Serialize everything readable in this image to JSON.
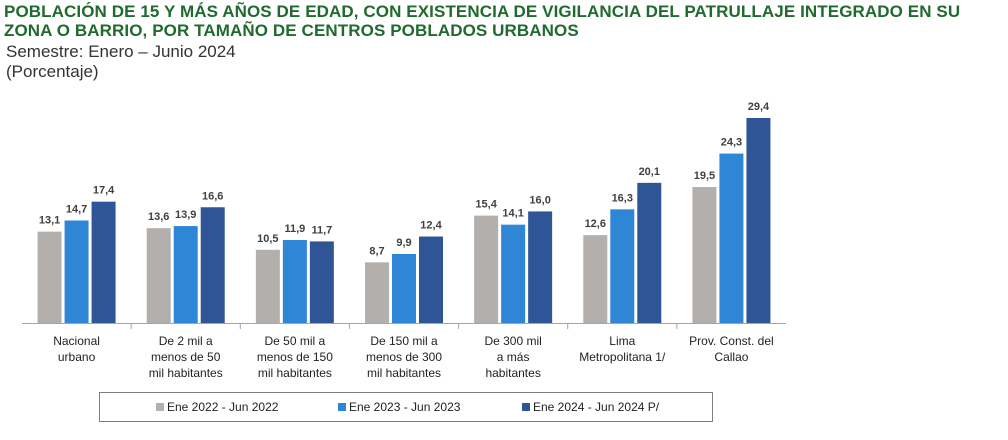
{
  "header": {
    "title": "POBLACIÓN DE 15 Y MÁS AÑOS DE EDAD, CON EXISTENCIA DE VIGILANCIA DEL PATRULLAJE INTEGRADO EN SU ZONA O BARRIO, POR TAMAÑO DE CENTROS POBLADOS URBANOS",
    "subtitle": "Semestre: Enero – Junio 2024",
    "unit": "(Porcentaje)"
  },
  "chart_data": {
    "type": "bar",
    "categories": [
      [
        "Nacional",
        "urbano"
      ],
      [
        "De 2 mil a",
        "menos de 50",
        "mil habitantes"
      ],
      [
        "De 50 mil a",
        "menos de 150",
        "mil habitantes"
      ],
      [
        "De 150 mil a",
        "menos de 300",
        "mil habitantes"
      ],
      [
        "De 300 mil",
        "a  más",
        "habitantes"
      ],
      [
        "Lima",
        "Metropolitana 1/"
      ],
      [
        "Prov. Const. del",
        "Callao"
      ]
    ],
    "series": [
      {
        "name": "Ene 2022 - Jun 2022",
        "color": "#b3afad",
        "values": [
          13.1,
          13.6,
          10.5,
          8.7,
          15.4,
          12.6,
          19.5
        ],
        "labels": [
          "13,1",
          "13,6",
          "10,5",
          "8,7",
          "15,4",
          "12,6",
          "19,5"
        ]
      },
      {
        "name": "Ene 2023 - Jun 2023",
        "color": "#2f86d6",
        "values": [
          14.7,
          13.9,
          11.9,
          9.9,
          14.1,
          16.3,
          24.3
        ],
        "labels": [
          "14,7",
          "13,9",
          "11,9",
          "9,9",
          "14,1",
          "16,3",
          "24,3"
        ]
      },
      {
        "name": "Ene 2024 - Jun 2024 P/",
        "color": "#2f5597",
        "values": [
          17.4,
          16.6,
          11.7,
          12.4,
          16.0,
          20.1,
          29.4
        ],
        "labels": [
          "17,4",
          "16,6",
          "11,7",
          "12,4",
          "16,0",
          "20,1",
          "29,4"
        ]
      }
    ],
    "ylim": [
      0,
      30
    ],
    "grid": false,
    "legend_position": "bottom"
  }
}
